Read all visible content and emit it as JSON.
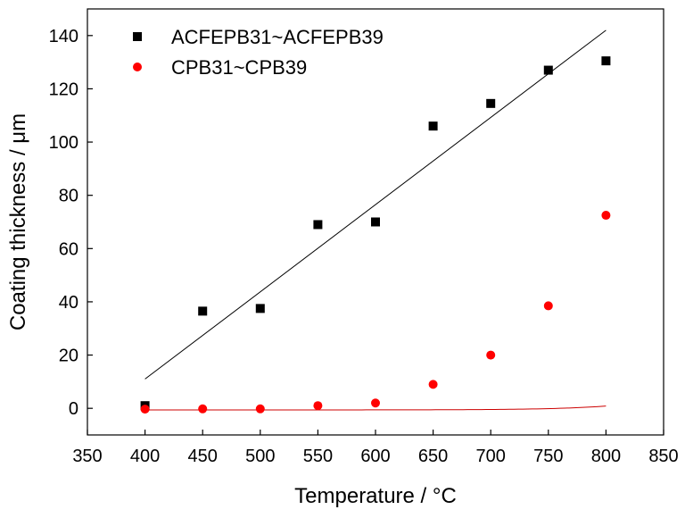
{
  "chart_data": {
    "type": "scatter",
    "xlabel": "Temperature / °C",
    "ylabel": "Coating thickness / μm",
    "xlim": [
      350,
      850
    ],
    "ylim": [
      -10,
      150
    ],
    "x_ticks": [
      350,
      400,
      450,
      500,
      550,
      600,
      650,
      700,
      750,
      800,
      850
    ],
    "y_ticks": [
      0,
      20,
      40,
      60,
      80,
      100,
      120,
      140
    ],
    "grid": false,
    "legend_position": "top-left",
    "series": [
      {
        "name": "ACFEPB31~ACFEPB39",
        "marker": "square",
        "color": "#000000",
        "x": [
          400,
          450,
          500,
          550,
          600,
          650,
          700,
          750,
          800
        ],
        "y": [
          1,
          36.5,
          37.5,
          69,
          70,
          106,
          114.5,
          127,
          130.5
        ],
        "fit": {
          "type": "linear",
          "color": "#000000",
          "x": [
            400,
            800
          ],
          "y": [
            11,
            142
          ]
        }
      },
      {
        "name": "CPB31~CPB39",
        "marker": "circle",
        "color": "#ff0000",
        "x": [
          400,
          450,
          500,
          550,
          600,
          650,
          700,
          750,
          800
        ],
        "y": [
          -0.3,
          -0.2,
          -0.2,
          1,
          2,
          9,
          20,
          38.5,
          72.5
        ],
        "fit": {
          "type": "exponential",
          "color": "#cc0000",
          "a": -0.6,
          "b": 0.000204,
          "c": 0.0222,
          "x0": 400
        }
      }
    ]
  }
}
